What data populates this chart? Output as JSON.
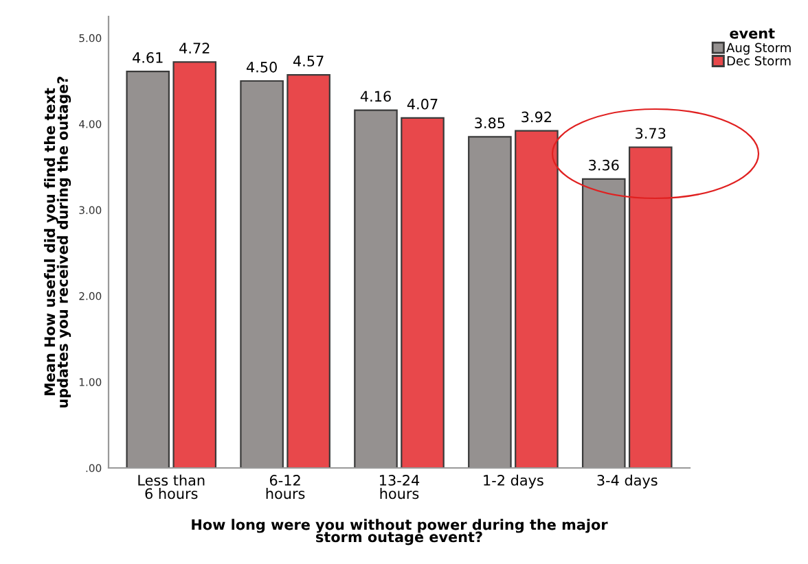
{
  "chart_data": {
    "type": "bar",
    "xlabel": "How long were you without power during the major\nstorm outage event?",
    "ylabel": "Mean How useful did you find the text\nupdates you received during the outage?",
    "legend_title": "event",
    "categories": [
      "Less than\n6 hours",
      "6-12\nhours",
      "13-24\nhours",
      "1-2 days",
      "3-4 days"
    ],
    "series": [
      {
        "name": "Aug Storm",
        "color": "#959190",
        "values": [
          4.61,
          4.5,
          4.16,
          3.85,
          3.36
        ],
        "value_labels": [
          "4.61",
          "4.50",
          "4.16",
          "3.85",
          "3.36"
        ]
      },
      {
        "name": "Dec Storm",
        "color": "#e8484b",
        "values": [
          4.72,
          4.57,
          4.07,
          3.92,
          3.73
        ],
        "value_labels": [
          "4.72",
          "4.57",
          "4.07",
          "3.92",
          "3.73"
        ]
      }
    ],
    "ylim": [
      0,
      5.25
    ],
    "yticks": [
      {
        "value": 0,
        "label": ".00"
      },
      {
        "value": 1,
        "label": "1.00"
      },
      {
        "value": 2,
        "label": "2.00"
      },
      {
        "value": 3,
        "label": "3.00"
      },
      {
        "value": 4,
        "label": "4.00"
      },
      {
        "value": 5,
        "label": "5.00"
      }
    ],
    "grid": false,
    "legend": "top right"
  }
}
